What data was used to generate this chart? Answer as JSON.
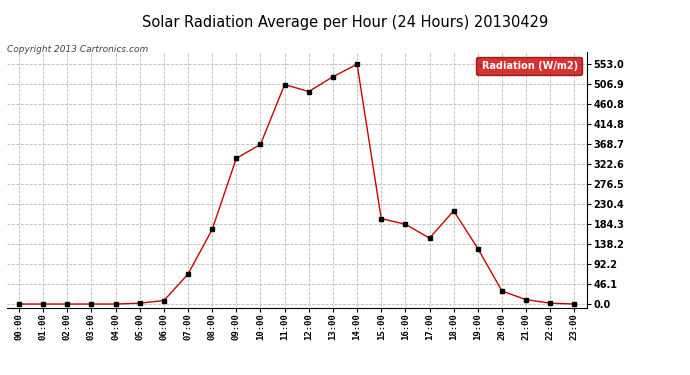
{
  "title": "Solar Radiation Average per Hour (24 Hours) 20130429",
  "copyright": "Copyright 2013 Cartronics.com",
  "legend_label": "Radiation (W/m2)",
  "hours": [
    "00:00",
    "01:00",
    "02:00",
    "03:00",
    "04:00",
    "05:00",
    "06:00",
    "07:00",
    "08:00",
    "09:00",
    "10:00",
    "11:00",
    "12:00",
    "13:00",
    "14:00",
    "15:00",
    "16:00",
    "17:00",
    "18:00",
    "19:00",
    "20:00",
    "21:00",
    "22:00",
    "23:00"
  ],
  "values": [
    0.0,
    0.0,
    0.0,
    0.0,
    0.0,
    2.0,
    8.0,
    69.0,
    172.0,
    336.0,
    368.0,
    506.0,
    490.0,
    524.0,
    553.0,
    197.0,
    184.0,
    152.0,
    215.0,
    128.0,
    30.0,
    10.0,
    2.0,
    0.0
  ],
  "line_color": "#cc0000",
  "marker_color": "#000000",
  "grid_color": "#bbbbbb",
  "bg_color": "#ffffff",
  "title_color": "#000000",
  "ytick_labels": [
    "0.0",
    "46.1",
    "92.2",
    "138.2",
    "184.3",
    "230.4",
    "276.5",
    "322.6",
    "368.7",
    "414.8",
    "460.8",
    "506.9",
    "553.0"
  ],
  "ytick_values": [
    0.0,
    46.1,
    92.2,
    138.2,
    184.3,
    230.4,
    276.5,
    322.6,
    368.7,
    414.8,
    460.8,
    506.9,
    553.0
  ],
  "ymax": 580.0,
  "ymin": -8.0,
  "legend_bg": "#cc0000",
  "legend_text_color": "#ffffff"
}
